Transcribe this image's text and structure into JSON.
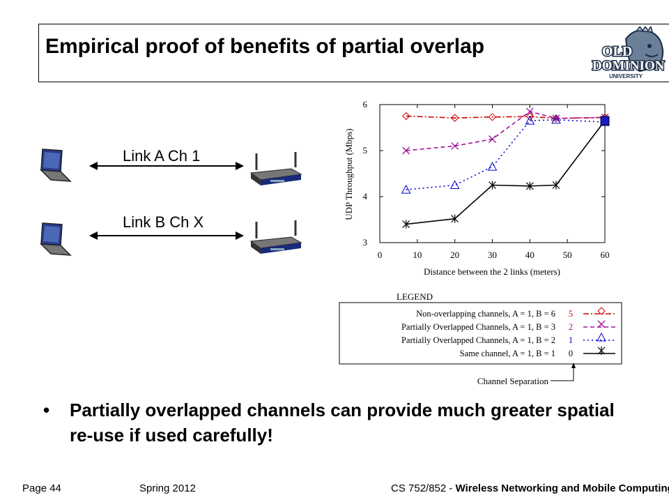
{
  "slide": {
    "title": "Empirical proof of benefits of partial overlap",
    "logo_text": [
      "OLD",
      "DOMINION",
      "UNIVERSITY"
    ],
    "links": [
      {
        "label": "Link A Ch 1"
      },
      {
        "label": "Link B Ch X"
      }
    ],
    "bullet": "Partially overlapped channels can provide much greater spatial re-use if used carefully!",
    "footer": {
      "page": "Page 44",
      "term": "Spring 2012",
      "course_prefix": "CS 752/852 - ",
      "course_name": "Wireless Networking and Mobile Computing"
    }
  },
  "chart_data": {
    "type": "line",
    "title": "",
    "xlabel": "Distance between the 2 links (meters)",
    "ylabel": "UDP Throughput (Mbps)",
    "xlim": [
      0,
      60
    ],
    "ylim": [
      3,
      6
    ],
    "xticks": [
      "0",
      "10",
      "20",
      "30",
      "40",
      "50",
      "60"
    ],
    "yticks": [
      "3",
      "4",
      "5",
      "6"
    ],
    "grid": false,
    "series": [
      {
        "name": "Non-overlapping channels, A = 1, B = 6",
        "sep": "5",
        "color": "#cc0000",
        "marker": "diamond",
        "dash": "8,3,2,3",
        "x": [
          7,
          20,
          30,
          40,
          47,
          60
        ],
        "y": [
          5.75,
          5.71,
          5.73,
          5.74,
          5.7,
          5.72
        ]
      },
      {
        "name": "Partially Overlapped Channels, A = 1, B = 3",
        "sep": "2",
        "color": "#a0109a",
        "marker": "x",
        "dash": "6,4",
        "x": [
          7,
          20,
          30,
          40,
          47,
          60
        ],
        "y": [
          5.0,
          5.1,
          5.25,
          5.85,
          5.7,
          5.72
        ]
      },
      {
        "name": "Partially Overlapped Channels, A = 1, B = 2",
        "sep": "1",
        "color": "#0000cc",
        "marker": "triangle",
        "dash": "2,4",
        "x": [
          7,
          20,
          30,
          40,
          47,
          60
        ],
        "y": [
          4.15,
          4.25,
          4.65,
          5.65,
          5.67,
          5.62
        ]
      },
      {
        "name": "Same channel, A = 1, B = 1",
        "sep": "0",
        "color": "#000000",
        "marker": "asterisk",
        "dash": "",
        "x": [
          7,
          20,
          30,
          40,
          47,
          60
        ],
        "y": [
          3.4,
          3.52,
          4.25,
          4.23,
          4.25,
          5.65
        ]
      }
    ],
    "legend_title": "LEGEND",
    "legend_note": "Channel Separation",
    "legend_placement": "below"
  }
}
